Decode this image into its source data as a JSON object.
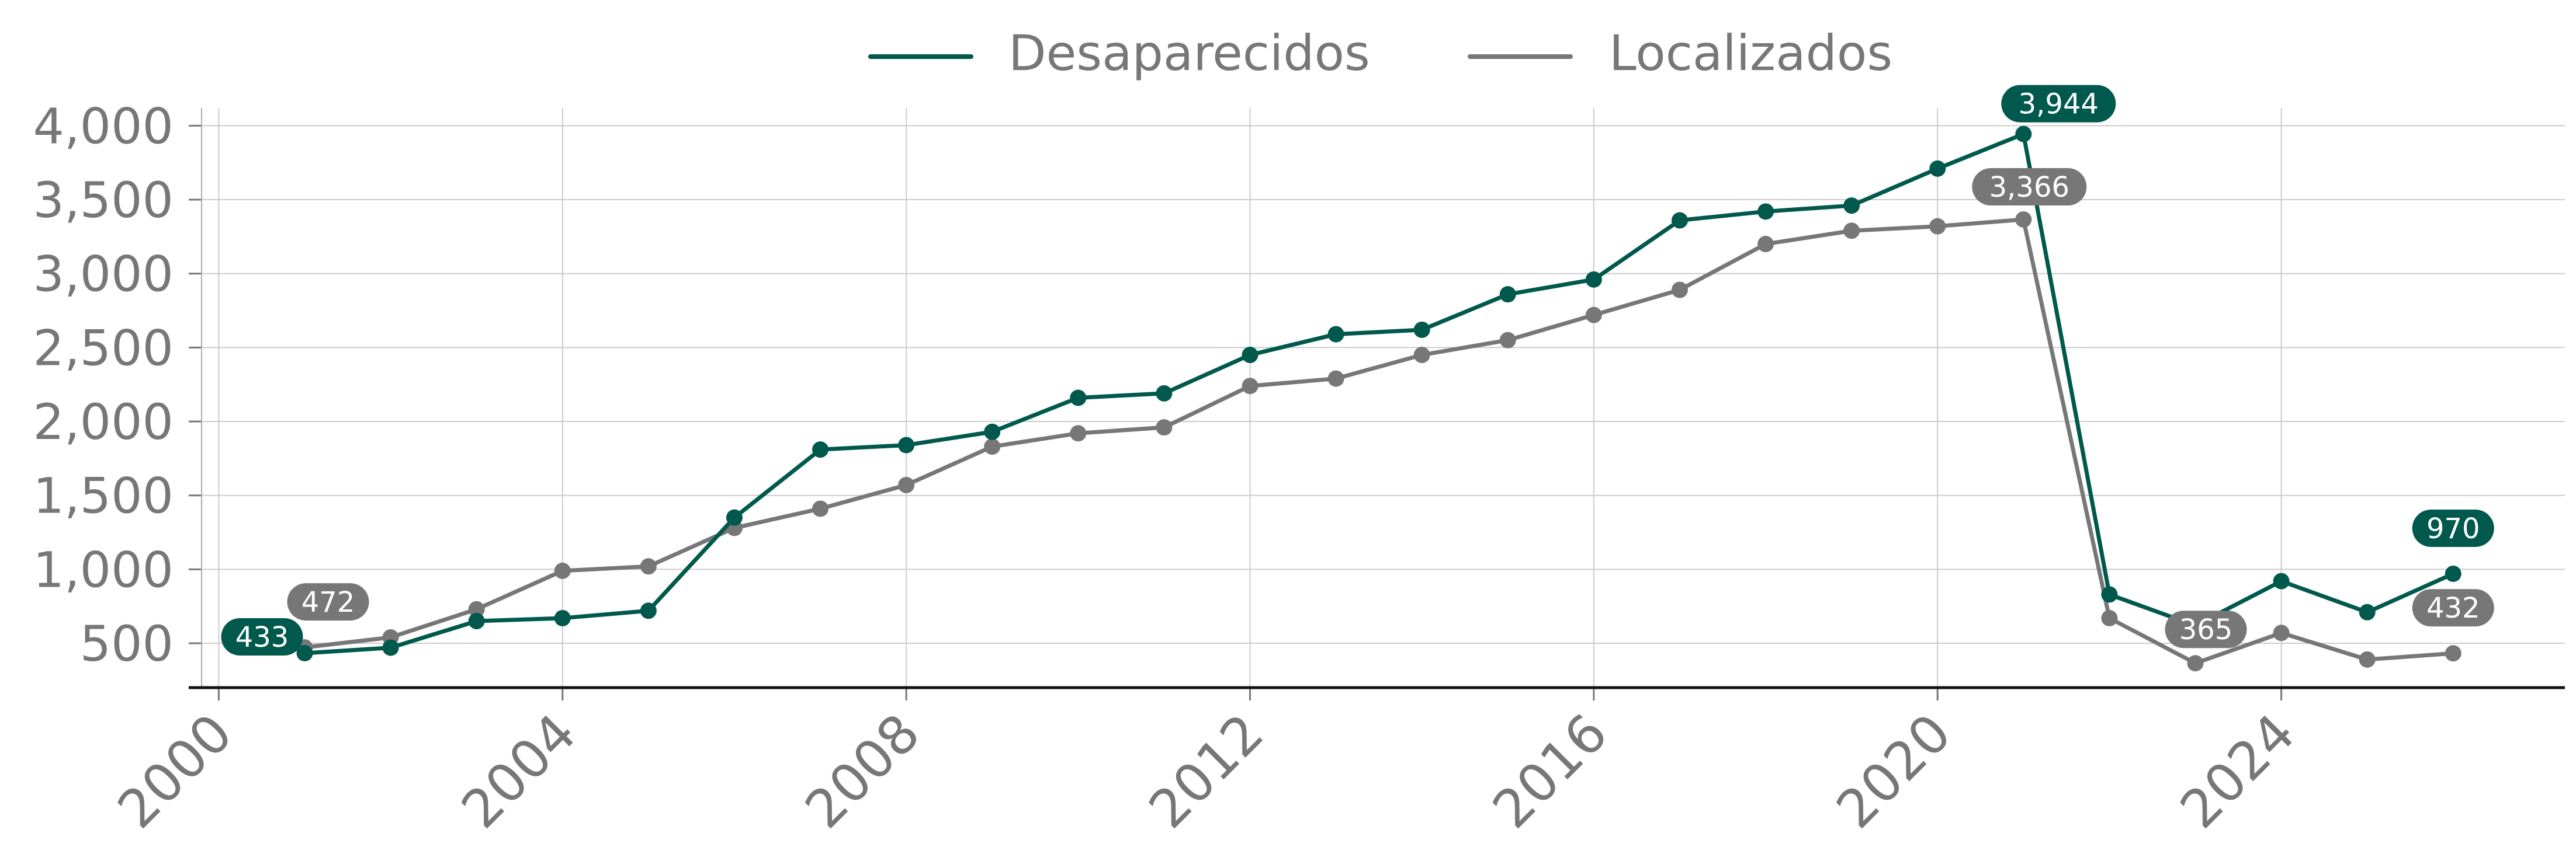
{
  "chart_data": {
    "type": "line",
    "title": "",
    "xlabel": "",
    "ylabel": "",
    "xlim": [
      1999.8,
      2027.3
    ],
    "ylim": [
      200,
      4120
    ],
    "x_ticks": [
      2000,
      2004,
      2008,
      2012,
      2016,
      2020,
      2024
    ],
    "x_tick_labels": [
      "2000",
      "2004",
      "2008",
      "2012",
      "2016",
      "2020",
      "2024"
    ],
    "y_ticks": [
      500,
      1000,
      1500,
      2000,
      2500,
      3000,
      3500,
      4000
    ],
    "y_tick_labels": [
      "500",
      "1,000",
      "1,500",
      "2,000",
      "2,500",
      "3,000",
      "3,500",
      "4,000"
    ],
    "grid": true,
    "legend_position": "top-center",
    "series": [
      {
        "name": "Desaparecidos",
        "color": "#00594C",
        "x": [
          2001,
          2002,
          2003,
          2004,
          2005,
          2006,
          2007,
          2008,
          2009,
          2010,
          2011,
          2012,
          2013,
          2014,
          2015,
          2016,
          2017,
          2018,
          2019,
          2020,
          2021,
          2022,
          2023,
          2024,
          2025,
          2026
        ],
        "values": [
          433,
          470,
          650,
          670,
          720,
          1350,
          1810,
          1840,
          1930,
          2160,
          2190,
          2450,
          2590,
          2620,
          2860,
          2960,
          3360,
          3420,
          3460,
          3710,
          3944,
          830,
          620,
          920,
          710,
          970
        ]
      },
      {
        "name": "Localizados",
        "color": "#777777",
        "x": [
          2001,
          2002,
          2003,
          2004,
          2005,
          2006,
          2007,
          2008,
          2009,
          2010,
          2011,
          2012,
          2013,
          2014,
          2015,
          2016,
          2017,
          2018,
          2019,
          2020,
          2021,
          2022,
          2023,
          2024,
          2025,
          2026
        ],
        "values": [
          472,
          540,
          730,
          990,
          1020,
          1280,
          1410,
          1570,
          1830,
          1920,
          1960,
          2240,
          2290,
          2450,
          2550,
          2720,
          2890,
          3200,
          3290,
          3320,
          3366,
          670,
          365,
          570,
          390,
          432
        ]
      }
    ],
    "annotations": [
      {
        "series": 0,
        "x": 2001,
        "text": "433"
      },
      {
        "series": 1,
        "x": 2001,
        "text": "472"
      },
      {
        "series": 0,
        "x": 2021,
        "text": "3,944"
      },
      {
        "series": 1,
        "x": 2021,
        "text": "3,366"
      },
      {
        "series": 1,
        "x": 2023,
        "text": "365"
      },
      {
        "series": 0,
        "x": 2026,
        "text": "970"
      },
      {
        "series": 1,
        "x": 2026,
        "text": "432"
      }
    ]
  }
}
